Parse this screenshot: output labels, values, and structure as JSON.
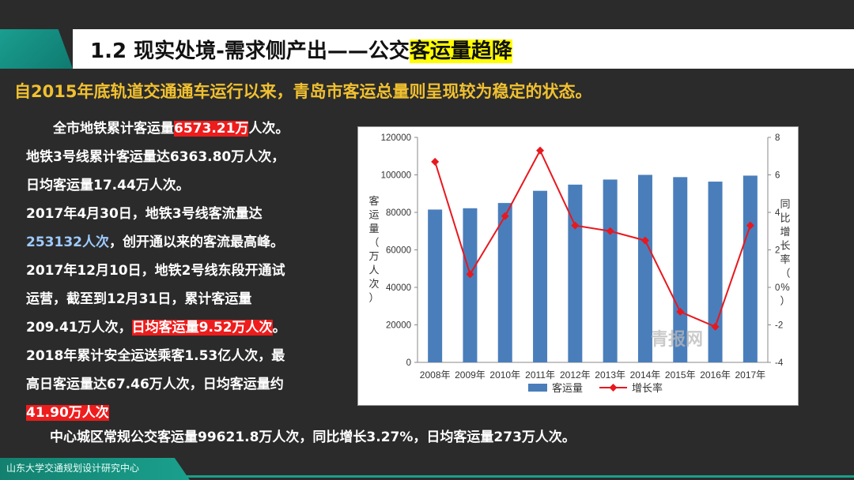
{
  "title": {
    "prefix": "1.2 现实处境-需求侧产出——公交",
    "highlight": "客运量趋降"
  },
  "subtitle": "自2015年底轨道交通通车运行以来，青岛市客运总量则呈现较为稳定的状态。",
  "paragraph": {
    "l1_a": "全市地铁累计客运量",
    "l1_b": "6573.21万",
    "l1_c": "人次。",
    "l2": "地铁3号线累计客运量达6363.80万人次，",
    "l3": "日均客运量17.44万人次。",
    "l4": "2017年4月30日，地铁3号线客流量达",
    "l5_a": "253132人次",
    "l5_b": "，创开通以来的客流最高峰。",
    "l6": "2017年12月10日，地铁2号线东段开通试",
    "l7": "运营，截至到12月31日，累计客运量",
    "l8_a": "209.41万人次，",
    "l8_b": "日均客运量9.52万人次",
    "l8_c": "。",
    "l9": "2018年累计安全运送乘客1.53亿人次，最",
    "l10": "高日客运量达67.46万人次，日均客运量约",
    "l11": "41.90万人次"
  },
  "bottom_text": "中心城区常规公交客运量99621.8万人次，同比增长3.27%，日均客运量273万人次。",
  "footer": "山东大学交通规划设计研究中心",
  "colors": {
    "bar": "#4a7ebb",
    "line": "#e8181f",
    "accent": "#1a9e8f",
    "highlight_red": "#ee1c1c",
    "title_highlight": "#ffff00"
  },
  "chart_data": {
    "type": "bar",
    "categories": [
      "2008年",
      "2009年",
      "2010年",
      "2011年",
      "2012年",
      "2013年",
      "2014年",
      "2015年",
      "2016年",
      "2017年"
    ],
    "series": [
      {
        "name": "客运量",
        "type": "bar",
        "axis": "left",
        "values": [
          81500,
          82200,
          85000,
          91500,
          94800,
          97500,
          100000,
          98800,
          96400,
          99600
        ]
      },
      {
        "name": "增长率",
        "type": "line",
        "axis": "right",
        "values": [
          6.7,
          0.7,
          3.8,
          7.3,
          3.3,
          3.0,
          2.5,
          -1.3,
          -2.1,
          3.3
        ]
      }
    ],
    "ylabel": "客运量（万人次）",
    "y2label": "同比增长率（%）",
    "ylim": [
      0,
      120000
    ],
    "y2lim": [
      -4,
      8
    ],
    "yticks": [
      "0",
      "20000",
      "40000",
      "60000",
      "80000",
      "100000",
      "120000"
    ],
    "y2ticks": [
      "-4",
      "-2",
      "0",
      "2",
      "4",
      "6",
      "8"
    ],
    "legend_position": "bottom",
    "watermark": "青报网"
  }
}
